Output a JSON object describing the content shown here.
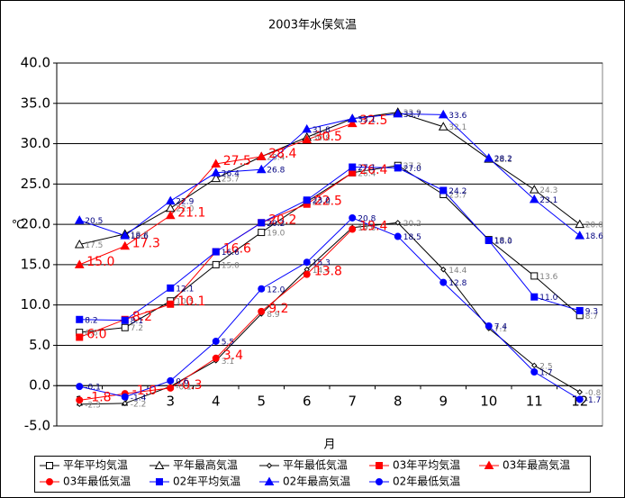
{
  "chart_data": {
    "type": "line",
    "title": "2003年水俣気温",
    "x_label": "月",
    "y_label": "℃",
    "categories": [
      "1",
      "2",
      "3",
      "4",
      "5",
      "6",
      "7",
      "8",
      "9",
      "10",
      "11",
      "12"
    ],
    "ylim": [
      -5,
      40
    ],
    "yticks": [
      {
        "value": -5,
        "label": "-5.0"
      },
      {
        "value": 0,
        "label": "0.0"
      },
      {
        "value": 5,
        "label": "5.0"
      },
      {
        "value": 10,
        "label": "10.0"
      },
      {
        "value": 15,
        "label": "15.0"
      },
      {
        "value": 20,
        "label": "20.0"
      },
      {
        "value": 25,
        "label": "25.0"
      },
      {
        "value": 30,
        "label": "30.0"
      },
      {
        "value": 35,
        "label": "35.0"
      },
      {
        "value": 40,
        "label": "40.0"
      }
    ],
    "grid": true,
    "series": [
      {
        "name": "平年平均気温",
        "color": "#000000",
        "marker": "square",
        "hollow": true,
        "values": [
          6.6,
          7.2,
          10.5,
          15.0,
          19.0,
          22.8,
          26.4,
          27.3,
          23.7,
          18.1,
          13.6,
          8.7
        ],
        "value_labels": [
          "6.6",
          "7.2",
          "10.5",
          "15.0",
          "19.0",
          "22.8",
          "26.4",
          "27.3",
          "23.7",
          "18.1",
          "13.6",
          "8.7"
        ]
      },
      {
        "name": "平年最高気温",
        "color": "#000000",
        "marker": "triangle",
        "hollow": true,
        "values": [
          17.5,
          18.8,
          22.0,
          25.7,
          28.4,
          30.8,
          33.1,
          33.9,
          32.1,
          28.1,
          24.3,
          20.0
        ],
        "value_labels": [
          "17.5",
          "18.8",
          "22.0",
          "25.7",
          "28.4",
          "30.8",
          "33.1",
          "33.9",
          "32.1",
          "28.1",
          "24.3",
          "20.0"
        ]
      },
      {
        "name": "平年最低気温",
        "color": "#000000",
        "marker": "diamond",
        "hollow": true,
        "values": [
          -2.3,
          -2.2,
          -0.1,
          3.1,
          8.9,
          14.4,
          19.6,
          20.2,
          14.4,
          7.1,
          2.5,
          -0.8
        ],
        "value_labels": [
          "-2.3",
          "-2.2",
          "-0.1",
          "3.1",
          "8.9",
          "14.4",
          "19.6",
          "20.2",
          "14.4",
          "7.1",
          "2.5",
          "-0.8"
        ]
      },
      {
        "name": "03年平均気温",
        "color": "#ff0000",
        "marker": "square",
        "hollow": false,
        "values": [
          6.0,
          8.2,
          10.1,
          16.6,
          20.2,
          22.5,
          26.4,
          null,
          null,
          null,
          null,
          null
        ],
        "value_labels": [
          "6.0",
          "8.2",
          "10.1",
          "16.6",
          "20.2",
          "22.5",
          "26.4",
          null,
          null,
          null,
          null,
          null
        ]
      },
      {
        "name": "03年最高気温",
        "color": "#ff0000",
        "marker": "triangle",
        "hollow": false,
        "values": [
          15.0,
          17.3,
          21.1,
          27.5,
          28.4,
          30.5,
          32.5,
          null,
          null,
          null,
          null,
          null
        ],
        "value_labels": [
          "15.0",
          "17.3",
          "21.1",
          "27.5",
          "28.4",
          "30.5",
          "32.5",
          null,
          null,
          null,
          null,
          null
        ]
      },
      {
        "name": "03年最低気温",
        "color": "#ff0000",
        "marker": "circle",
        "hollow": false,
        "values": [
          -1.8,
          -1.0,
          -0.3,
          3.4,
          9.2,
          13.8,
          19.4,
          null,
          null,
          null,
          null,
          null
        ],
        "value_labels": [
          "-1.8",
          "-1.0",
          "-0.3",
          "3.4",
          "9.2",
          "13.8",
          "19.4",
          null,
          null,
          null,
          null,
          null
        ]
      },
      {
        "name": "02年平均気温",
        "color": "#0000ff",
        "marker": "square",
        "hollow": false,
        "values": [
          8.2,
          8.1,
          12.1,
          16.6,
          20.2,
          23.0,
          27.1,
          27.0,
          24.2,
          18.0,
          11.0,
          9.3
        ],
        "value_labels": [
          "8.2",
          "8.1",
          "12.1",
          "16.6",
          "20.2",
          "23.0",
          "27.1",
          "27.0",
          "24.2",
          "18.0",
          "11.0",
          "9.3"
        ]
      },
      {
        "name": "02年最高気温",
        "color": "#0000ff",
        "marker": "triangle",
        "hollow": false,
        "values": [
          20.5,
          18.6,
          22.9,
          26.4,
          26.8,
          31.8,
          33.1,
          33.7,
          33.6,
          28.2,
          23.1,
          18.6
        ],
        "value_labels": [
          "20.5",
          "18.6",
          "22.9",
          "26.4",
          "26.8",
          "31.8",
          "33.1",
          "33.7",
          "33.6",
          "28.2",
          "23.1",
          "18.6"
        ]
      },
      {
        "name": "02年最低気温",
        "color": "#0000ff",
        "marker": "circle",
        "hollow": false,
        "values": [
          -0.1,
          -1.4,
          0.6,
          5.5,
          12.0,
          15.3,
          20.8,
          18.5,
          12.8,
          7.4,
          1.7,
          -1.7
        ],
        "value_labels": [
          "-0.1",
          "-1.4",
          "0.6",
          "5.5",
          "12.0",
          "15.3",
          "20.8",
          "18.5",
          "12.8",
          "7.4",
          "1.7",
          "-1.7"
        ]
      }
    ]
  }
}
